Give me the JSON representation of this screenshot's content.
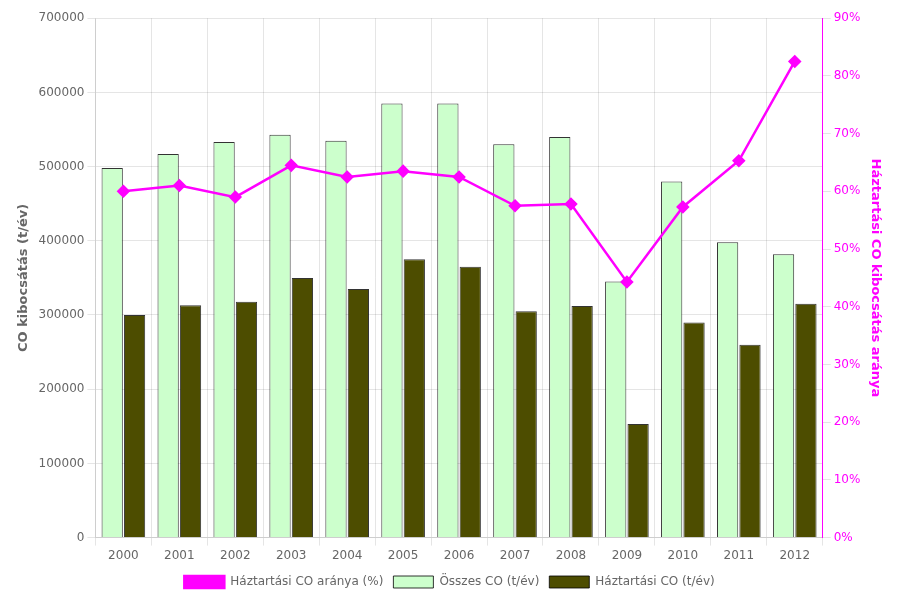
{
  "chart_data": {
    "type": "bar",
    "categories": [
      "2000",
      "2001",
      "2002",
      "2003",
      "2004",
      "2005",
      "2006",
      "2007",
      "2008",
      "2009",
      "2010",
      "2011",
      "2012"
    ],
    "series": [
      {
        "name": "Összes CO (t/év)",
        "color": "#ccffcc",
        "values": [
          498000,
          517000,
          533000,
          543000,
          535000,
          585000,
          585000,
          530000,
          540000,
          345000,
          480000,
          398000,
          382000
        ]
      },
      {
        "name": "Háztartási CO (t/év)",
        "color": "#4d4d00",
        "values": [
          300000,
          313000,
          318000,
          350000,
          335000,
          375000,
          365000,
          305000,
          312000,
          153000,
          290000,
          260000,
          315000
        ]
      },
      {
        "name": "Háztartási CO aránya (%)",
        "type": "line",
        "color": "#ff00ff",
        "marker": "diamond",
        "axis": "y2",
        "values": [
          0.6,
          0.61,
          0.59,
          0.645,
          0.625,
          0.635,
          0.625,
          0.575,
          0.578,
          0.443,
          0.573,
          0.653,
          0.825
        ]
      }
    ],
    "ylabel": "CO kibocsátás (t/év)",
    "y2label": "Háztartási CO kibocsátás aránya",
    "ylim": [
      0,
      700000
    ],
    "yticks": [
      0,
      100000,
      200000,
      300000,
      400000,
      500000,
      600000,
      700000
    ],
    "y2lim": [
      0,
      0.9
    ],
    "y2ticks": [
      {
        "value": 0.0,
        "label": "0%"
      },
      {
        "value": 0.1,
        "label": "10%"
      },
      {
        "value": 0.2,
        "label": "20%"
      },
      {
        "value": 0.3,
        "label": "30%"
      },
      {
        "value": 0.4,
        "label": "40%"
      },
      {
        "value": 0.5,
        "label": "50%"
      },
      {
        "value": 0.6,
        "label": "60%"
      },
      {
        "value": 0.7,
        "label": "70%"
      },
      {
        "value": 0.8,
        "label": "80%"
      },
      {
        "value": 0.9,
        "label": "90%"
      }
    ],
    "grid": true,
    "legend": "bottom"
  }
}
